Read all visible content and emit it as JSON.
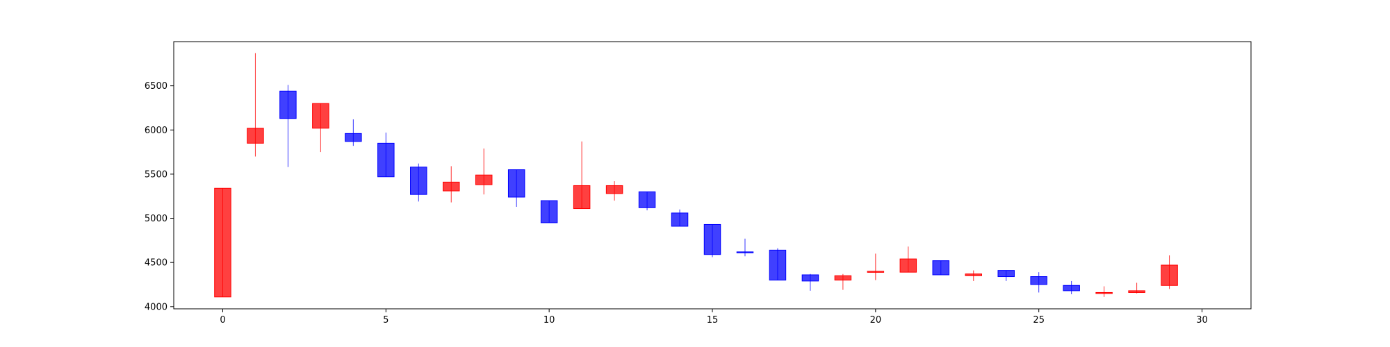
{
  "chart_data": {
    "type": "candlestick",
    "title": "",
    "xlabel": "",
    "ylabel": "",
    "xlim": [
      -1.5,
      31.5
    ],
    "ylim": [
      3975,
      7000
    ],
    "x_ticks": [
      0,
      5,
      10,
      15,
      20,
      25,
      30
    ],
    "y_ticks": [
      4000,
      4500,
      5000,
      5500,
      6000,
      6500
    ],
    "grid": false,
    "legend": "none",
    "colors": {
      "up": "#ff0000",
      "down": "#0000ff",
      "axes": "#000000",
      "background": "#ffffff"
    },
    "candles": [
      {
        "x": 0,
        "open": 4110,
        "close": 5340,
        "high": 5340,
        "low": 4110
      },
      {
        "x": 1,
        "open": 5850,
        "close": 6020,
        "high": 6870,
        "low": 5700
      },
      {
        "x": 2,
        "open": 6440,
        "close": 6130,
        "high": 6510,
        "low": 5580
      },
      {
        "x": 3,
        "open": 6020,
        "close": 6300,
        "high": 6300,
        "low": 5750
      },
      {
        "x": 4,
        "open": 5960,
        "close": 5870,
        "high": 6120,
        "low": 5820
      },
      {
        "x": 5,
        "open": 5850,
        "close": 5470,
        "high": 5970,
        "low": 5470
      },
      {
        "x": 6,
        "open": 5580,
        "close": 5270,
        "high": 5620,
        "low": 5190
      },
      {
        "x": 7,
        "open": 5310,
        "close": 5410,
        "high": 5590,
        "low": 5180
      },
      {
        "x": 8,
        "open": 5380,
        "close": 5490,
        "high": 5790,
        "low": 5270
      },
      {
        "x": 9,
        "open": 5550,
        "close": 5240,
        "high": 5550,
        "low": 5130
      },
      {
        "x": 10,
        "open": 5200,
        "close": 4950,
        "high": 5200,
        "low": 4950
      },
      {
        "x": 11,
        "open": 5110,
        "close": 5370,
        "high": 5870,
        "low": 5110
      },
      {
        "x": 12,
        "open": 5280,
        "close": 5370,
        "high": 5420,
        "low": 5200
      },
      {
        "x": 13,
        "open": 5300,
        "close": 5120,
        "high": 5300,
        "low": 5090
      },
      {
        "x": 14,
        "open": 5060,
        "close": 4910,
        "high": 5100,
        "low": 4910
      },
      {
        "x": 15,
        "open": 4930,
        "close": 4590,
        "high": 4930,
        "low": 4560
      },
      {
        "x": 16,
        "open": 4620,
        "close": 4610,
        "high": 4770,
        "low": 4570
      },
      {
        "x": 17,
        "open": 4640,
        "close": 4300,
        "high": 4660,
        "low": 4300
      },
      {
        "x": 18,
        "open": 4360,
        "close": 4290,
        "high": 4370,
        "low": 4180
      },
      {
        "x": 19,
        "open": 4300,
        "close": 4350,
        "high": 4370,
        "low": 4190
      },
      {
        "x": 20,
        "open": 4390,
        "close": 4400,
        "high": 4600,
        "low": 4300
      },
      {
        "x": 21,
        "open": 4390,
        "close": 4540,
        "high": 4680,
        "low": 4390
      },
      {
        "x": 22,
        "open": 4520,
        "close": 4360,
        "high": 4520,
        "low": 4360
      },
      {
        "x": 23,
        "open": 4350,
        "close": 4370,
        "high": 4410,
        "low": 4290
      },
      {
        "x": 24,
        "open": 4410,
        "close": 4340,
        "high": 4410,
        "low": 4290
      },
      {
        "x": 25,
        "open": 4340,
        "close": 4250,
        "high": 4390,
        "low": 4160
      },
      {
        "x": 26,
        "open": 4240,
        "close": 4180,
        "high": 4290,
        "low": 4140
      },
      {
        "x": 27,
        "open": 4150,
        "close": 4160,
        "high": 4230,
        "low": 4110
      },
      {
        "x": 28,
        "open": 4160,
        "close": 4180,
        "high": 4270,
        "low": 4150
      },
      {
        "x": 29,
        "open": 4240,
        "close": 4470,
        "high": 4580,
        "low": 4200
      }
    ]
  }
}
